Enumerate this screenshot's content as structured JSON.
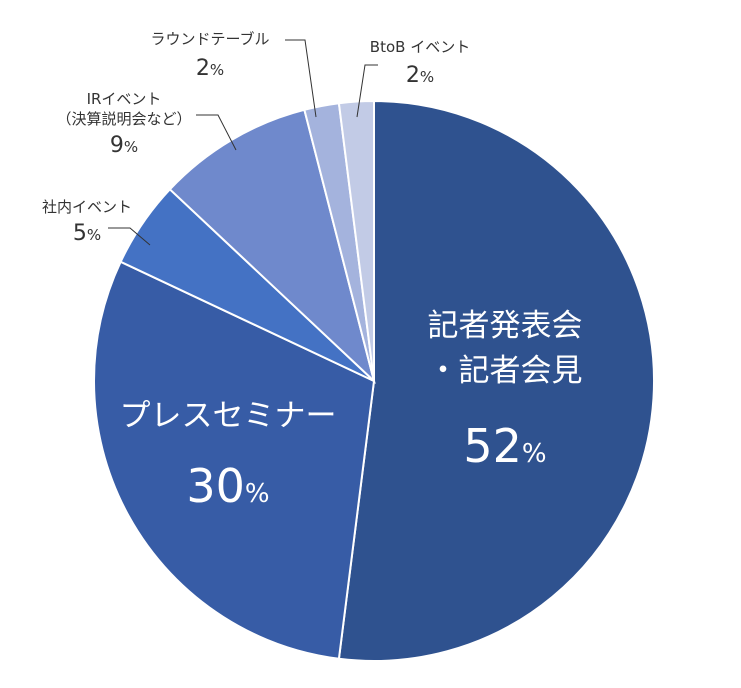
{
  "chart_data": {
    "type": "pie",
    "title": "",
    "start_angle_deg": 0,
    "direction": "clockwise",
    "slices": [
      {
        "label": "記者発表会・記者会見",
        "label_lines": [
          "記者発表会",
          "・記者会見"
        ],
        "value": 52,
        "value_text": "52",
        "unit": "%",
        "color": "#2f528f",
        "placement": "inside"
      },
      {
        "label": "プレスセミナー",
        "label_lines": [
          "プレスセミナー"
        ],
        "value": 30,
        "value_text": "30",
        "unit": "%",
        "color": "#375ca6",
        "placement": "inside"
      },
      {
        "label": "社内イベント",
        "label_lines": [
          "社内イベント"
        ],
        "value": 5,
        "value_text": "5",
        "unit": "%",
        "color": "#4472c4",
        "placement": "outside"
      },
      {
        "label": "IRイベント（決算説明会など）",
        "label_lines": [
          "IRイベント",
          "（決算説明会など）"
        ],
        "value": 9,
        "value_text": "9",
        "unit": "%",
        "color": "#6f89cc",
        "placement": "outside"
      },
      {
        "label": "ラウンドテーブル",
        "label_lines": [
          "ラウンドテーブル"
        ],
        "value": 2,
        "value_text": "2",
        "unit": "%",
        "color": "#a4b3dd",
        "placement": "outside"
      },
      {
        "label": "BtoB イベント",
        "label_lines": [
          "BtoB イベント"
        ],
        "value": 2,
        "value_text": "2",
        "unit": "%",
        "color": "#c2cbe6",
        "placement": "outside"
      }
    ]
  }
}
